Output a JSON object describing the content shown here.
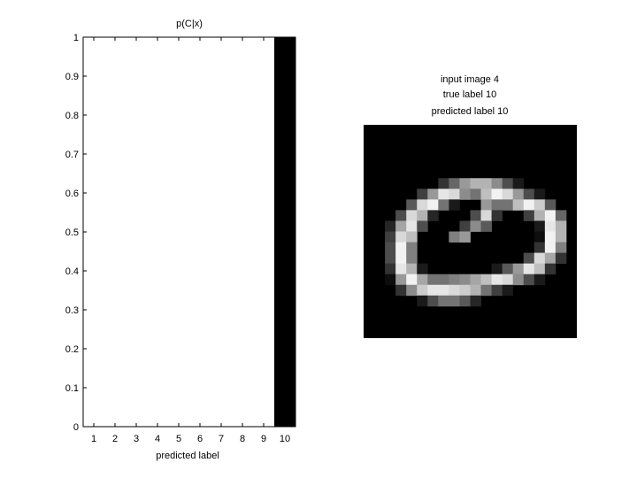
{
  "chart_data": [
    {
      "type": "bar",
      "title": "p(C|x)",
      "xlabel": "predicted label",
      "ylabel": "",
      "categories": [
        "1",
        "2",
        "3",
        "4",
        "5",
        "6",
        "7",
        "8",
        "9",
        "10"
      ],
      "values": [
        0,
        0,
        0,
        0,
        0,
        0,
        0,
        0,
        0,
        1
      ],
      "ylim": [
        0,
        1
      ],
      "yticks": [
        "0",
        "0.1",
        "0.2",
        "0.3",
        "0.4",
        "0.5",
        "0.6",
        "0.7",
        "0.8",
        "0.9",
        "1"
      ],
      "bar_color": "#000000",
      "grid": false
    },
    {
      "type": "heatmap",
      "colormap": "gray",
      "title_lines": [
        "input image 4",
        "true label 10",
        "predicted label 10"
      ],
      "rows": 20,
      "cols": 20,
      "pixels": [
        [
          0,
          0,
          0,
          0,
          0,
          0,
          0,
          0,
          0,
          0,
          0,
          0,
          0,
          0,
          0,
          0,
          0,
          0,
          0,
          0
        ],
        [
          0,
          0,
          0,
          0,
          0,
          0,
          0,
          0,
          0,
          0,
          0,
          0,
          0,
          0,
          0,
          0,
          0,
          0,
          0,
          0
        ],
        [
          0,
          0,
          0,
          0,
          0,
          0,
          0,
          0,
          0,
          0,
          0,
          0,
          0,
          0,
          0,
          0,
          0,
          0,
          0,
          0
        ],
        [
          0,
          0,
          0,
          0,
          0,
          0,
          0,
          0,
          0,
          0,
          0,
          0,
          0,
          0,
          0,
          0,
          0,
          0,
          0,
          0
        ],
        [
          0,
          0,
          0,
          0,
          0,
          0,
          0,
          0,
          0,
          0,
          0,
          0,
          0,
          0,
          0,
          0,
          0,
          0,
          0,
          0
        ],
        [
          0,
          0,
          0,
          0,
          0,
          0,
          0,
          0.2,
          0.4,
          0.6,
          0.7,
          0.7,
          0.55,
          0.3,
          0.1,
          0,
          0,
          0,
          0,
          0
        ],
        [
          0,
          0,
          0,
          0,
          0,
          0.25,
          0.6,
          0.9,
          0.85,
          0.55,
          0.45,
          0.75,
          0.95,
          0.85,
          0.6,
          0.3,
          0.1,
          0,
          0,
          0
        ],
        [
          0,
          0,
          0,
          0,
          0.35,
          0.85,
          0.95,
          0.45,
          0.1,
          0,
          0,
          0.6,
          0.45,
          0.45,
          0.75,
          0.95,
          0.8,
          0.35,
          0,
          0
        ],
        [
          0,
          0,
          0,
          0.3,
          0.85,
          0.7,
          0.15,
          0,
          0,
          0,
          0.3,
          0.85,
          0.2,
          0,
          0,
          0.25,
          0.7,
          0.95,
          0.4,
          0
        ],
        [
          0,
          0,
          0.15,
          0.65,
          0.9,
          0.3,
          0,
          0,
          0,
          0.25,
          0.55,
          0.35,
          0,
          0,
          0,
          0,
          0.1,
          0.9,
          0.7,
          0
        ],
        [
          0,
          0,
          0.25,
          0.85,
          0.75,
          0,
          0,
          0,
          0.5,
          0.6,
          0,
          0,
          0,
          0,
          0,
          0,
          0.05,
          0.95,
          0.7,
          0
        ],
        [
          0,
          0,
          0.3,
          0.95,
          0.5,
          0,
          0,
          0,
          0,
          0,
          0,
          0,
          0,
          0,
          0,
          0,
          0.2,
          0.95,
          0.5,
          0
        ],
        [
          0,
          0,
          0.3,
          0.95,
          0.5,
          0,
          0,
          0,
          0,
          0,
          0,
          0,
          0,
          0,
          0,
          0.3,
          0.85,
          0.65,
          0.2,
          0
        ],
        [
          0,
          0,
          0.2,
          0.9,
          0.7,
          0.1,
          0,
          0,
          0,
          0,
          0,
          0,
          0.1,
          0.35,
          0.6,
          0.9,
          0.75,
          0.2,
          0,
          0
        ],
        [
          0,
          0,
          0.05,
          0.6,
          0.95,
          0.65,
          0.45,
          0.45,
          0.5,
          0.55,
          0.65,
          0.75,
          0.9,
          0.85,
          0.55,
          0.3,
          0.1,
          0,
          0,
          0
        ],
        [
          0,
          0,
          0,
          0.2,
          0.55,
          0.8,
          0.9,
          0.9,
          0.85,
          0.8,
          0.7,
          0.45,
          0.25,
          0.1,
          0,
          0,
          0,
          0,
          0,
          0
        ],
        [
          0,
          0,
          0,
          0,
          0,
          0.1,
          0.3,
          0.45,
          0.45,
          0.35,
          0.15,
          0,
          0,
          0,
          0,
          0,
          0,
          0,
          0,
          0
        ],
        [
          0,
          0,
          0,
          0,
          0,
          0,
          0,
          0,
          0,
          0,
          0,
          0,
          0,
          0,
          0,
          0,
          0,
          0,
          0,
          0
        ],
        [
          0,
          0,
          0,
          0,
          0,
          0,
          0,
          0,
          0,
          0,
          0,
          0,
          0,
          0,
          0,
          0,
          0,
          0,
          0,
          0
        ],
        [
          0,
          0,
          0,
          0,
          0,
          0,
          0,
          0,
          0,
          0,
          0,
          0,
          0,
          0,
          0,
          0,
          0,
          0,
          0,
          0
        ]
      ]
    }
  ]
}
